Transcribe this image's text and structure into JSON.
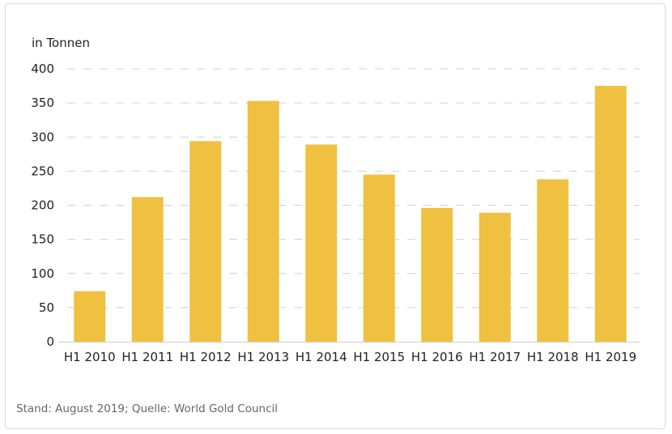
{
  "chart_data": {
    "type": "bar",
    "ylabel": "in Tonnen",
    "categories": [
      "H1 2010",
      "H1 2011",
      "H1 2012",
      "H1 2013",
      "H1 2014",
      "H1 2015",
      "H1 2016",
      "H1 2017",
      "H1 2018",
      "H1 2019"
    ],
    "values": [
      74,
      212,
      294,
      353,
      289,
      245,
      196,
      189,
      238,
      375
    ],
    "ylim": [
      0,
      400
    ],
    "yticks": [
      0,
      50,
      100,
      150,
      200,
      250,
      300,
      350,
      400
    ],
    "grid": "horizontal dashed",
    "bar_color": "#F0C040"
  },
  "footnote": "Stand: August 2019; Quelle: World Gold Council"
}
